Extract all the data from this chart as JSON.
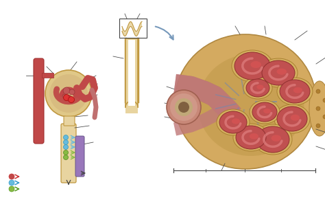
{
  "bg": "white",
  "red_tube": "#c04848",
  "red_dark": "#a03030",
  "tan_light": "#e8d4a0",
  "tan_mid": "#d4b870",
  "tan_dark": "#c09840",
  "purple": "#9977bb",
  "blue_dot": "#66bbdd",
  "green_dot": "#88bb44",
  "gray_line": "#777777",
  "gray_dark": "#444444",
  "pink_vessel": "#c87070",
  "pink_light": "#e09090",
  "brown_outer": "#c09050",
  "brown_dark": "#a07030",
  "blue_capillary": "#8899bb",
  "cortex_tan": "#d4aa60",
  "cortex_dark": "#b08840",
  "glom_red": "#c05050",
  "glom_pink": "#d87070",
  "bowman_beige": "#e0c888"
}
